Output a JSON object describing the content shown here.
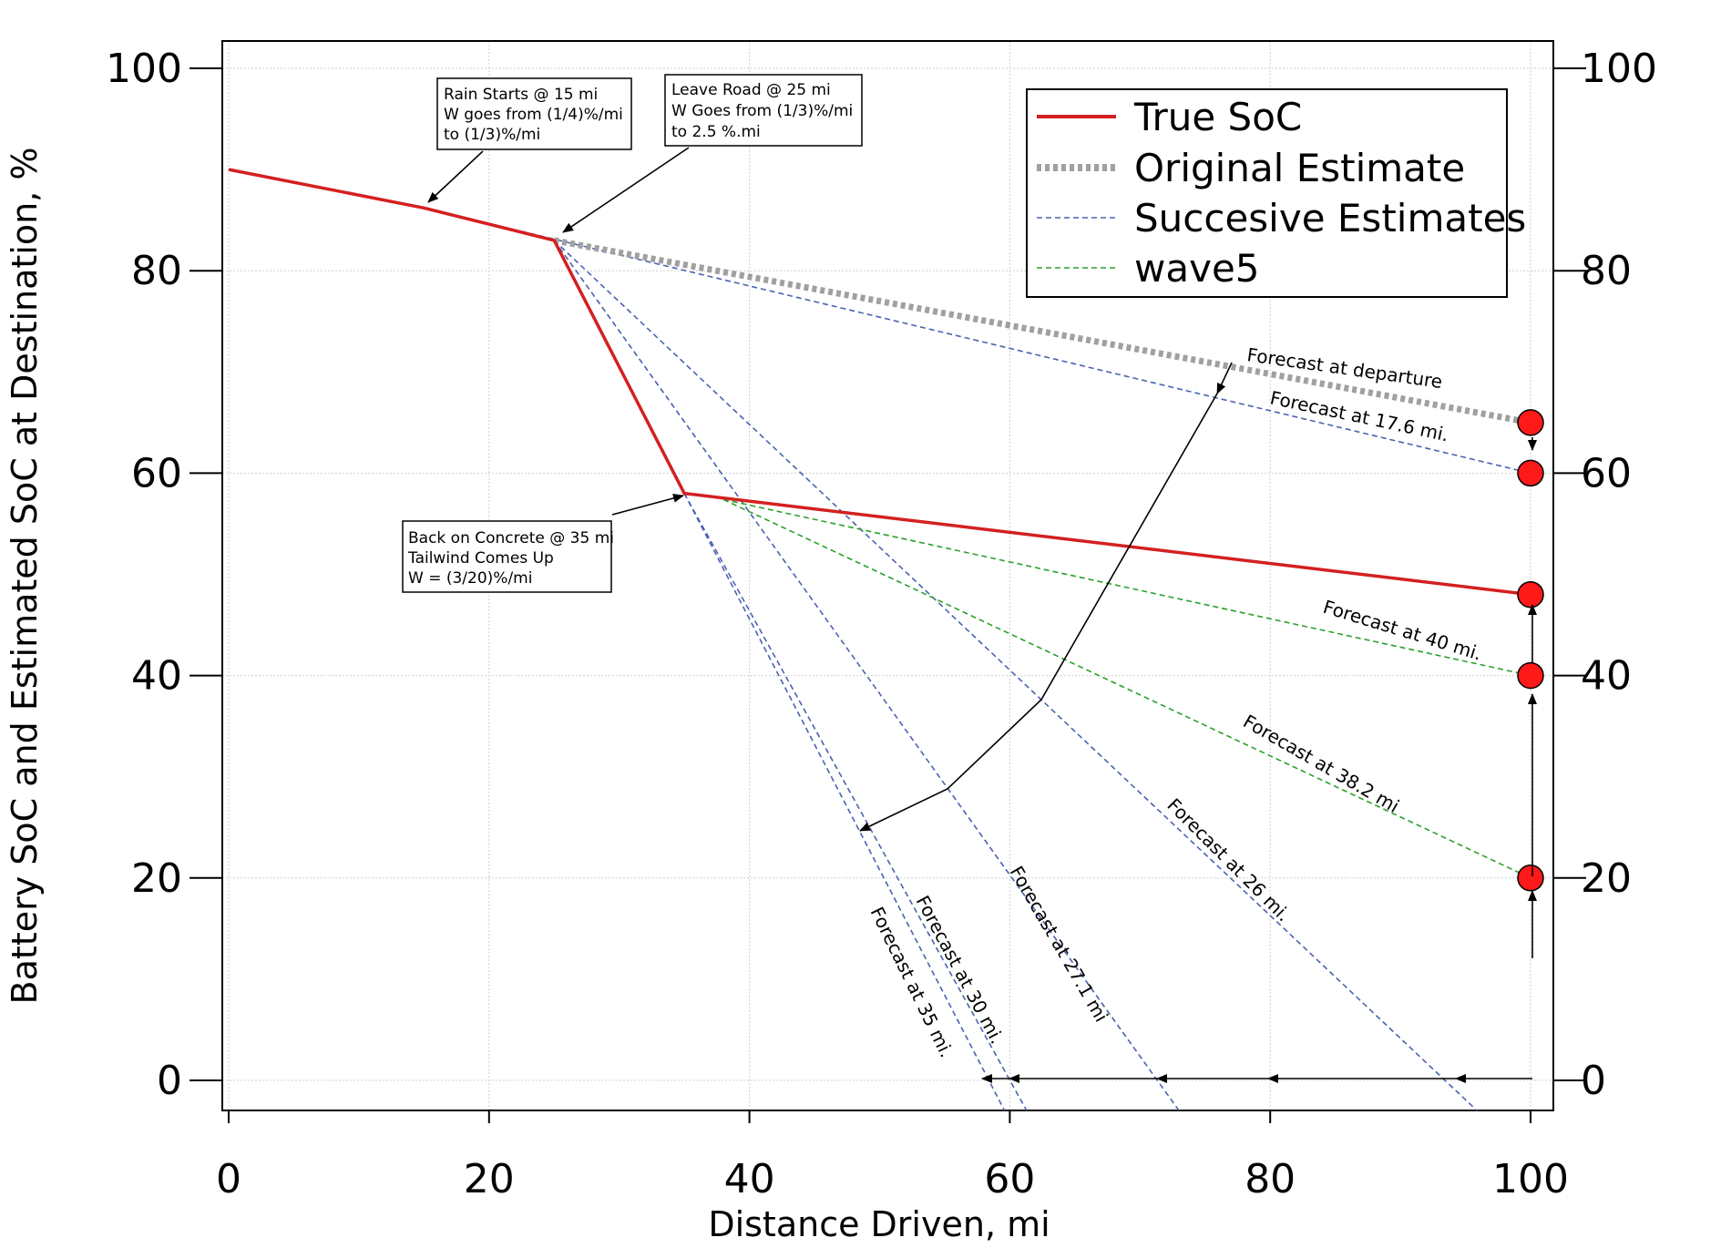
{
  "chart_data": {
    "type": "line",
    "xlabel": "Distance Driven, mi",
    "ylabel": "Battery SoC and Estimated SoC at Destination, %",
    "xlim": [
      0,
      100
    ],
    "ylim": [
      -3,
      102.5
    ],
    "xticks": [
      0,
      20,
      40,
      60,
      80,
      100
    ],
    "yticks": [
      0,
      20,
      40,
      60,
      80,
      100
    ],
    "right_axis_ticks": [
      0,
      20,
      40,
      60,
      80,
      100
    ],
    "grid": true,
    "legend": {
      "position": "top-right",
      "entries": [
        "True SoC",
        "Original Estimate",
        "Succesive Estimates",
        "wave5"
      ]
    },
    "series": [
      {
        "name": "True SoC",
        "style": "solid",
        "color": "#d42020",
        "x": [
          0,
          15,
          25,
          35,
          100
        ],
        "y": [
          90,
          86.2,
          83,
          58,
          48
        ]
      },
      {
        "name": "Original Estimate",
        "style": "dotted",
        "color": "#a0a0a0",
        "x": [
          25,
          100
        ],
        "y": [
          83,
          65
        ]
      },
      {
        "name": "Succesive Estimates",
        "style": "dashed",
        "color": "#4a62b0",
        "lines": [
          {
            "x": [
              15,
              100
            ],
            "y": [
              86.2,
              60
            ]
          },
          {
            "x": [
              25,
              95.9
            ],
            "y": [
              83,
              -3
            ]
          },
          {
            "x": [
              25,
              73
            ],
            "y": [
              83,
              -3
            ]
          },
          {
            "x": [
              35,
              61.3
            ],
            "y": [
              58,
              -3
            ]
          },
          {
            "x": [
              35,
              59.6
            ],
            "y": [
              58,
              -3
            ]
          }
        ]
      },
      {
        "name": "wave5",
        "style": "dashed",
        "color": "#2aa02a",
        "lines": [
          {
            "x": [
              38,
              100
            ],
            "y": [
              57.4,
              40
            ]
          },
          {
            "x": [
              38,
              100
            ],
            "y": [
              57.4,
              20
            ]
          }
        ]
      }
    ],
    "endpoint_markers": {
      "color": "#ff1a1a",
      "x": 100,
      "y": [
        65,
        60,
        48,
        40,
        20
      ]
    },
    "annotation_boxes": [
      {
        "lines": [
          "Rain Starts @ 15 mi",
          "W goes from (1/4)%/mi",
          "to (1/3)%/mi"
        ]
      },
      {
        "lines": [
          "Leave Road @ 25 mi",
          "W Goes from (1/3)%/mi",
          "to 2.5 %.mi"
        ]
      },
      {
        "lines": [
          "Back on Concrete @ 35 mi",
          "Tailwind Comes Up",
          "W  =  (3/20)%/mi"
        ]
      }
    ],
    "forecast_labels": [
      "Forecast at departure",
      "Forecast at 17.6 mi.",
      "Forecast at 40 mi.",
      "Forecast at 38.2 mi",
      "Forecast at 26 mi.",
      "Forecast at 27.1 mi",
      "Forecast at 30 mi.",
      "Forecast at 35 mi."
    ]
  }
}
